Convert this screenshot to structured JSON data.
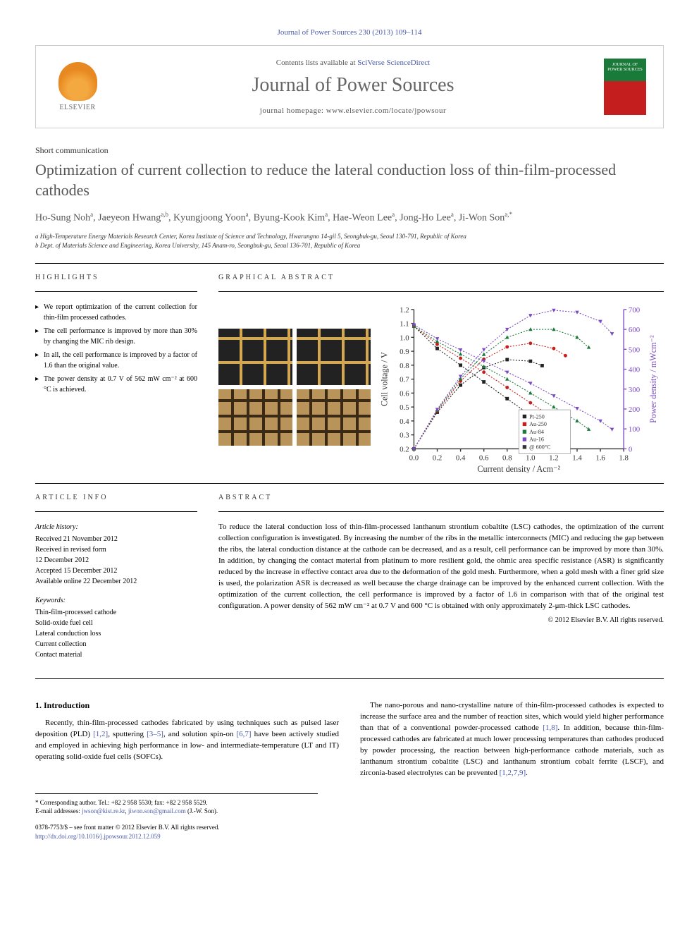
{
  "citation": "Journal of Power Sources 230 (2013) 109–114",
  "header": {
    "contents_prefix": "Contents lists available at ",
    "contents_link": "SciVerse ScienceDirect",
    "journal_name": "Journal of Power Sources",
    "homepage_prefix": "journal homepage: ",
    "homepage_url": "www.elsevier.com/locate/jpowsour",
    "elsevier_label": "ELSEVIER",
    "cover_line1": "JOURNAL OF",
    "cover_line2": "POWER SOURCES"
  },
  "article_type": "Short communication",
  "title": "Optimization of current collection to reduce the lateral conduction loss of thin-film-processed cathodes",
  "authors_html": "Ho-Sung Noh<sup>a</sup>, Jaeyeon Hwang<sup>a,b</sup>, Kyungjoong Yoon<sup>a</sup>, Byung-Kook Kim<sup>a</sup>, Hae-Weon Lee<sup>a</sup>, Jong-Ho Lee<sup>a</sup>, Ji-Won Son<sup>a,*</sup>",
  "affiliations": [
    "a High-Temperature Energy Materials Research Center, Korea Institute of Science and Technology, Hwarangno 14-gil 5, Seongbuk-gu, Seoul 130-791, Republic of Korea",
    "b Dept. of Materials Science and Engineering, Korea University, 145 Anam-ro, Seongbuk-gu, Seoul 136-701, Republic of Korea"
  ],
  "highlights_label": "HIGHLIGHTS",
  "highlights": [
    "We report optimization of the current collection for thin-film processed cathodes.",
    "The cell performance is improved by more than 30% by changing the MIC rib design.",
    "In all, the cell performance is improved by a factor of 1.6 than the original value.",
    "The power density at 0.7 V of 562 mW cm⁻² at 600 °C is achieved."
  ],
  "graphical_label": "GRAPHICAL ABSTRACT",
  "chart": {
    "type": "line-scatter-dual-axis",
    "x_label": "Current density / Acm⁻²",
    "y_left_label": "Cell voltage / V",
    "y_right_label": "Power density / mWcm⁻²",
    "xlim": [
      0.0,
      1.8
    ],
    "xtick_step": 0.2,
    "ylim_left": [
      0.2,
      1.2
    ],
    "ytick_left_step": 0.1,
    "ylim_right": [
      0,
      700
    ],
    "ytick_right_step": 100,
    "legend_items": [
      "Pt-250",
      "Au-250",
      "Au-84",
      "Au-16",
      "@ 600°C"
    ],
    "legend_colors": [
      "#222222",
      "#c41e1e",
      "#1a7a3a",
      "#7a4ac4",
      "#333333"
    ],
    "axis_label_fontsize": 9,
    "tick_fontsize": 8,
    "series_colors": {
      "voltage_pt250": "#222222",
      "voltage_au250": "#c41e1e",
      "voltage_au84": "#1a7a3a",
      "voltage_au16": "#7a4ac4",
      "power_pt250": "#222222",
      "power_au250": "#c41e1e",
      "power_au84": "#1a7a3a",
      "power_au16": "#7a4ac4"
    },
    "voltage_series": {
      "pt250": [
        [
          0.0,
          1.08
        ],
        [
          0.2,
          0.92
        ],
        [
          0.4,
          0.8
        ],
        [
          0.6,
          0.68
        ],
        [
          0.8,
          0.56
        ],
        [
          1.0,
          0.44
        ],
        [
          1.1,
          0.38
        ]
      ],
      "au250": [
        [
          0.0,
          1.08
        ],
        [
          0.2,
          0.95
        ],
        [
          0.4,
          0.85
        ],
        [
          0.6,
          0.75
        ],
        [
          0.8,
          0.64
        ],
        [
          1.0,
          0.53
        ],
        [
          1.2,
          0.42
        ],
        [
          1.3,
          0.36
        ]
      ],
      "au84": [
        [
          0.0,
          1.08
        ],
        [
          0.2,
          0.97
        ],
        [
          0.4,
          0.88
        ],
        [
          0.6,
          0.79
        ],
        [
          0.8,
          0.7
        ],
        [
          1.0,
          0.6
        ],
        [
          1.2,
          0.5
        ],
        [
          1.4,
          0.4
        ],
        [
          1.5,
          0.34
        ]
      ],
      "au16": [
        [
          0.0,
          1.09
        ],
        [
          0.2,
          0.99
        ],
        [
          0.4,
          0.91
        ],
        [
          0.6,
          0.83
        ],
        [
          0.8,
          0.75
        ],
        [
          1.0,
          0.67
        ],
        [
          1.2,
          0.58
        ],
        [
          1.4,
          0.49
        ],
        [
          1.6,
          0.4
        ],
        [
          1.7,
          0.34
        ]
      ]
    },
    "power_series": {
      "pt250": [
        [
          0.0,
          0
        ],
        [
          0.2,
          184
        ],
        [
          0.4,
          320
        ],
        [
          0.6,
          408
        ],
        [
          0.8,
          448
        ],
        [
          1.0,
          440
        ],
        [
          1.1,
          418
        ]
      ],
      "au250": [
        [
          0.0,
          0
        ],
        [
          0.2,
          190
        ],
        [
          0.4,
          340
        ],
        [
          0.6,
          450
        ],
        [
          0.8,
          512
        ],
        [
          1.0,
          530
        ],
        [
          1.2,
          504
        ],
        [
          1.3,
          468
        ]
      ],
      "au84": [
        [
          0.0,
          0
        ],
        [
          0.2,
          194
        ],
        [
          0.4,
          352
        ],
        [
          0.6,
          474
        ],
        [
          0.8,
          560
        ],
        [
          1.0,
          600
        ],
        [
          1.2,
          600
        ],
        [
          1.4,
          560
        ],
        [
          1.5,
          510
        ]
      ],
      "au16": [
        [
          0.0,
          0
        ],
        [
          0.2,
          198
        ],
        [
          0.4,
          364
        ],
        [
          0.6,
          498
        ],
        [
          0.8,
          600
        ],
        [
          1.0,
          670
        ],
        [
          1.2,
          696
        ],
        [
          1.4,
          686
        ],
        [
          1.6,
          640
        ],
        [
          1.7,
          578
        ]
      ]
    }
  },
  "article_info_label": "ARTICLE INFO",
  "article_history_heading": "Article history:",
  "article_history": [
    "Received 21 November 2012",
    "Received in revised form",
    "12 December 2012",
    "Accepted 15 December 2012",
    "Available online 22 December 2012"
  ],
  "keywords_heading": "Keywords:",
  "keywords": [
    "Thin-film-processed cathode",
    "Solid-oxide fuel cell",
    "Lateral conduction loss",
    "Current collection",
    "Contact material"
  ],
  "abstract_label": "ABSTRACT",
  "abstract": "To reduce the lateral conduction loss of thin-film-processed lanthanum strontium cobaltite (LSC) cathodes, the optimization of the current collection configuration is investigated. By increasing the number of the ribs in the metallic interconnects (MIC) and reducing the gap between the ribs, the lateral conduction distance at the cathode can be decreased, and as a result, cell performance can be improved by more than 30%. In addition, by changing the contact material from platinum to more resilient gold, the ohmic area specific resistance (ASR) is significantly reduced by the increase in effective contact area due to the deformation of the gold mesh. Furthermore, when a gold mesh with a finer grid size is used, the polarization ASR is decreased as well because the charge drainage can be improved by the enhanced current collection. With the optimization of the current collection, the cell performance is improved by a factor of 1.6 in comparison with that of the original test configuration. A power density of 562 mW cm⁻² at 0.7 V and 600 °C is obtained with only approximately 2-μm-thick LSC cathodes.",
  "abstract_copyright": "© 2012 Elsevier B.V. All rights reserved.",
  "intro_heading": "1. Introduction",
  "intro_p1": "Recently, thin-film-processed cathodes fabricated by using techniques such as pulsed laser deposition (PLD) [1,2], sputtering [3–5], and solution spin-on [6,7] have been actively studied and employed in achieving high performance in low- and intermediate-temperature (LT and IT) operating solid-oxide fuel cells (SOFCs).",
  "intro_p2": "The nano-porous and nano-crystalline nature of thin-film-processed cathodes is expected to increase the surface area and the number of reaction sites, which would yield higher performance than that of a conventional powder-processed cathode [1,8]. In addition, because thin-film-processed cathodes are fabricated at much lower processing temperatures than cathodes produced by powder processing, the reaction between high-performance cathode materials, such as lanthanum strontium cobaltite (LSC) and lanthanum strontium cobalt ferrite (LSCF), and zirconia-based electrolytes can be prevented [1,2,7,9].",
  "intro_refs": {
    "r12": "[1,2]",
    "r35": "[3–5]",
    "r67": "[6,7]",
    "r18": "[1,8]",
    "r1279": "[1,2,7,9]"
  },
  "corresponding": "* Corresponding author. Tel.: +82 2 958 5530; fax: +82 2 958 5529.",
  "email_line_prefix": "E-mail addresses: ",
  "emails": [
    "jwson@kist.re.kr",
    "jiwon.son@gmail.com"
  ],
  "email_suffix": " (J.-W. Son).",
  "footer_issn": "0378-7753/$ – see front matter © 2012 Elsevier B.V. All rights reserved.",
  "footer_doi": "http://dx.doi.org/10.1016/j.jpowsour.2012.12.059"
}
